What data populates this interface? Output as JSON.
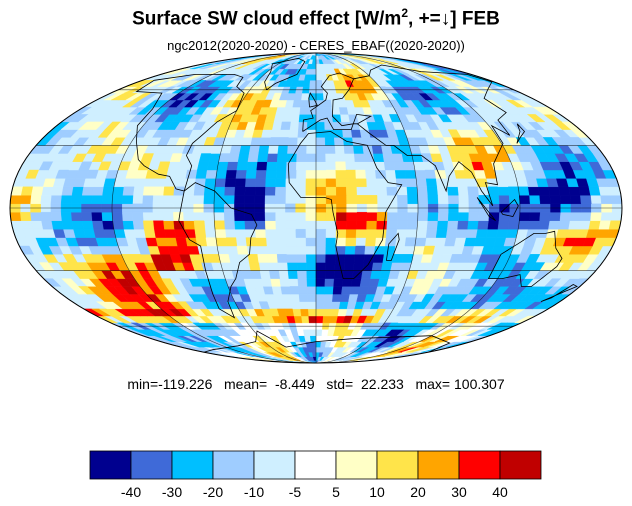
{
  "title": {
    "main": "Surface SW cloud effect [W/m",
    "sup": "2",
    "tail": ", +=↓]  FEB"
  },
  "subtitle": "ngc2012(2020-2020) - CERES_EBAF((2020-2020))",
  "stats": {
    "min": "-119.226",
    "mean": "-8.449",
    "std": "22.233",
    "max": "100.307",
    "text": "min=-119.226   mean=  -8.449   std=  22.233   max= 100.307"
  },
  "colorbar": {
    "colors": [
      "#00008f",
      "#3f6ad8",
      "#00bfff",
      "#9fcdff",
      "#cfefff",
      "#ffffff",
      "#ffffc6",
      "#ffe44a",
      "#ffa500",
      "#ff0000",
      "#c00000"
    ],
    "labels": [
      "-40",
      "-30",
      "-20",
      "-10",
      "-5",
      "5",
      "10",
      "20",
      "30",
      "40"
    ]
  },
  "map_projection": "mollweide"
}
